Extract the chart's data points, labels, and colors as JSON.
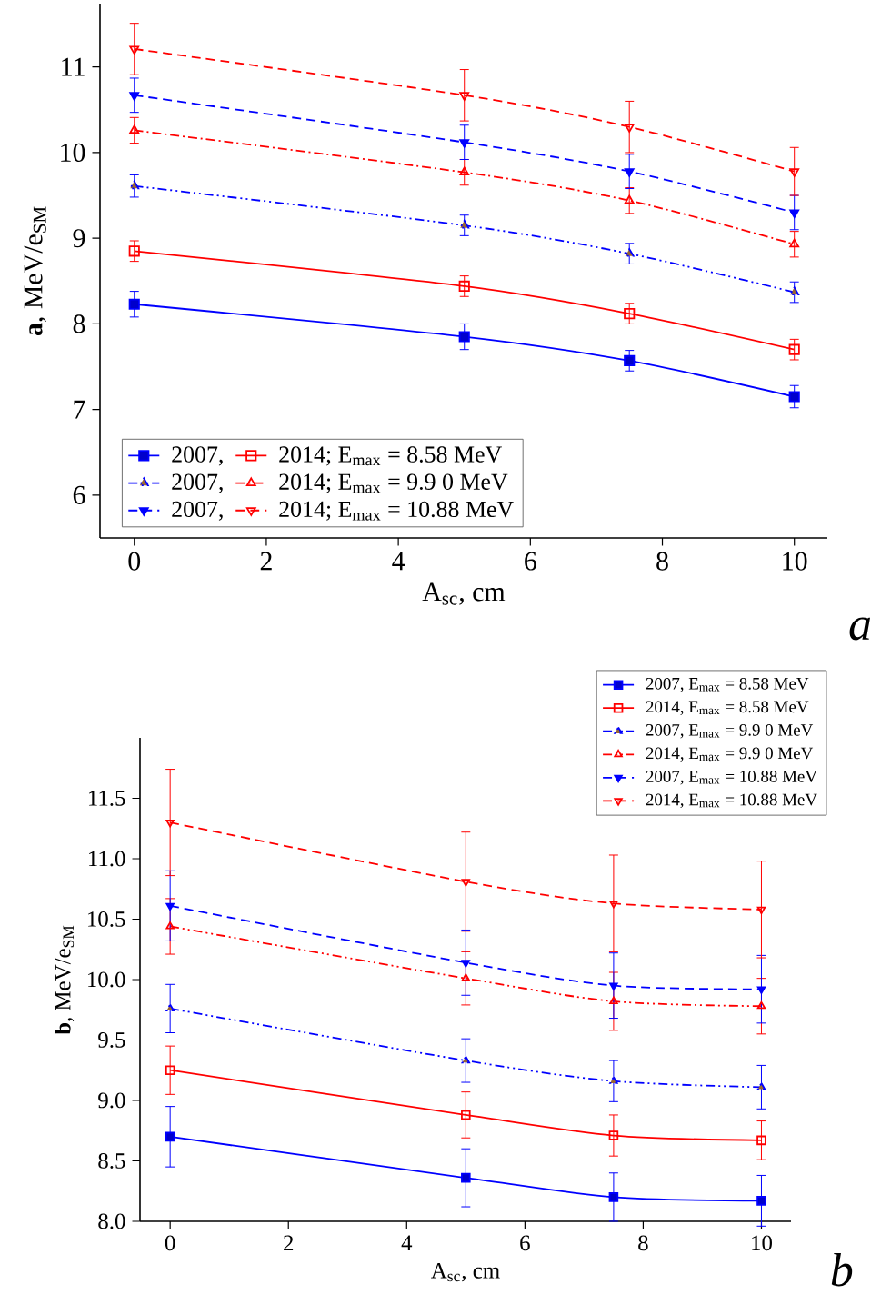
{
  "chart_data": [
    {
      "type": "line",
      "xlabel": "A$_{sc}$, cm",
      "ylabel": "**a**, MeV/e$_{SM}$",
      "annotations": [
        "*a*"
      ],
      "x": [
        0,
        5,
        7.5,
        10
      ],
      "xlim": [
        -0.52,
        10.5
      ],
      "ylim": [
        5.5,
        11.74
      ],
      "xticks": [
        0,
        2,
        4,
        6,
        8,
        10
      ],
      "yticks": [
        6,
        7,
        8,
        9,
        10,
        11
      ],
      "legend": "bottom left",
      "series": [
        {
          "name": "2007,",
          "color": "#0000ff",
          "marker": "square",
          "line_style": "solid",
          "values": [
            8.23,
            7.85,
            7.57,
            7.15
          ],
          "errors": [
            0.15,
            0.15,
            0.12,
            0.13
          ]
        },
        {
          "name": "2014; E$_{max}$ = 8.58 MeV",
          "color": "#ff0000",
          "marker": "square_open",
          "line_style": "solid",
          "values": [
            8.85,
            8.44,
            8.12,
            7.7
          ],
          "errors": [
            0.12,
            0.12,
            0.12,
            0.12
          ]
        },
        {
          "name": "2007,",
          "color": "#0000ff",
          "marker": "triangle",
          "line_style": "dashdotdot",
          "values": [
            9.61,
            9.15,
            8.82,
            8.37
          ],
          "errors": [
            0.13,
            0.12,
            0.12,
            0.12
          ]
        },
        {
          "name": "2014; E$_{max}$ = 9.9 0 MeV",
          "color": "#ff0000",
          "marker": "triangle_open",
          "line_style": "dashdot",
          "values": [
            10.26,
            9.77,
            9.44,
            8.93
          ],
          "errors": [
            0.15,
            0.15,
            0.15,
            0.15
          ]
        },
        {
          "name": "2007,",
          "color": "#0000ff",
          "marker": "triangle_down",
          "line_style": "dashed",
          "values": [
            10.67,
            10.12,
            9.78,
            9.3
          ],
          "errors": [
            0.2,
            0.2,
            0.2,
            0.2
          ]
        },
        {
          "name": "2014; E$_{max}$ = 10.88 MeV",
          "color": "#ff0000",
          "marker": "triangle_down_open",
          "line_style": "dashed",
          "values": [
            11.21,
            10.67,
            10.3,
            9.78
          ],
          "errors": [
            0.3,
            0.3,
            0.3,
            0.28
          ]
        }
      ]
    },
    {
      "type": "line",
      "xlabel": "A$_{sc}$, cm",
      "ylabel": "**b**, MeV/e$_{SM}$",
      "annotations": [
        "*b*"
      ],
      "x": [
        0,
        5,
        7.5,
        10
      ],
      "xlim": [
        -0.51,
        10.5
      ],
      "ylim": [
        8.0,
        12.0
      ],
      "xticks": [
        0,
        2,
        4,
        6,
        8,
        10
      ],
      "yticks": [
        {
          "value": 8,
          "label": "8.0"
        },
        8.5,
        {
          "value": 9,
          "label": "9.0"
        },
        9.5,
        {
          "value": 10,
          "label": "10.0"
        },
        10.5,
        {
          "value": 11,
          "label": "11.0"
        },
        11.5
      ],
      "legend": "top right",
      "series": [
        {
          "name": "2007, E$_{max}$ = 8.58 MeV",
          "color": "#0000ff",
          "marker": "square",
          "line_style": "solid",
          "values": [
            8.7,
            8.36,
            8.2,
            8.17
          ],
          "errors": [
            0.25,
            0.24,
            0.2,
            0.21
          ]
        },
        {
          "name": "2014, E$_{max}$ = 8.58 MeV",
          "color": "#ff0000",
          "marker": "square_open",
          "line_style": "solid",
          "values": [
            9.25,
            8.88,
            8.71,
            8.67
          ],
          "errors": [
            0.2,
            0.19,
            0.17,
            0.16
          ]
        },
        {
          "name": "2007, E$_{max}$ = 9.9 0 MeV",
          "color": "#0000ff",
          "marker": "triangle",
          "line_style": "dashdotdot",
          "values": [
            9.76,
            9.33,
            9.16,
            9.11
          ],
          "errors": [
            0.2,
            0.18,
            0.17,
            0.18
          ]
        },
        {
          "name": "2014, E$_{max}$ = 9.9 0 MeV",
          "color": "#ff0000",
          "marker": "triangle_open",
          "line_style": "dashdotdot",
          "values": [
            10.44,
            10.01,
            9.82,
            9.78
          ],
          "errors": [
            0.23,
            0.22,
            0.24,
            0.23
          ]
        },
        {
          "name": "2007, E$_{max}$ = 10.88 MeV",
          "color": "#0000ff",
          "marker": "triangle_down",
          "line_style": "dashed",
          "values": [
            10.61,
            10.14,
            9.95,
            9.92
          ],
          "errors": [
            0.29,
            0.27,
            0.27,
            0.28
          ]
        },
        {
          "name": "2014, E$_{max}$ = 10.88 MeV",
          "color": "#ff0000",
          "marker": "triangle_down_open",
          "line_style": "dashed",
          "values": [
            11.3,
            10.81,
            10.63,
            10.58
          ],
          "errors": [
            0.44,
            0.41,
            0.4,
            0.4
          ]
        }
      ]
    }
  ]
}
